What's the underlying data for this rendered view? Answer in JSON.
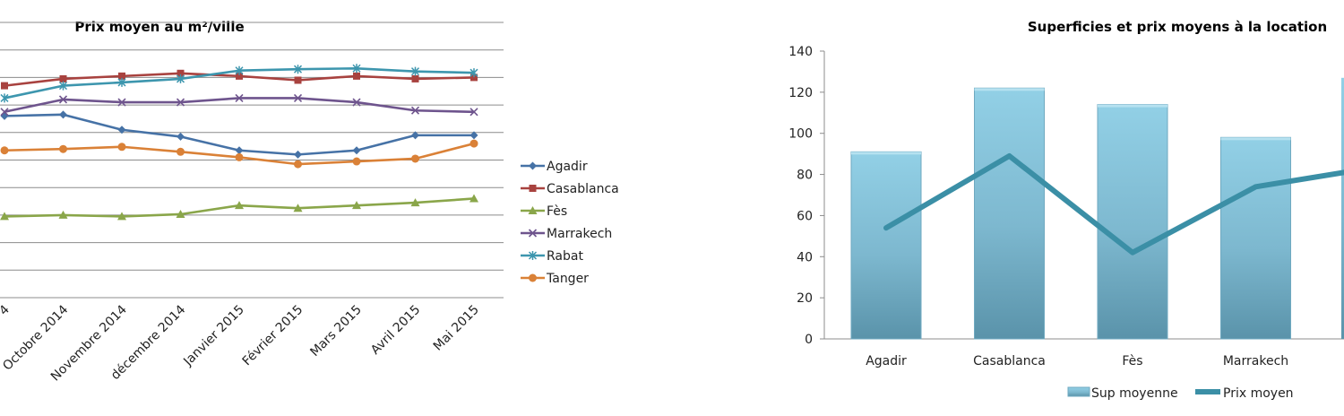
{
  "chart_data": [
    {
      "type": "line",
      "title": "Prix moyen au m²/ville",
      "x_labels": [
        "4",
        "Octobre 2014",
        "Novembre 2014",
        "décembre 2014",
        "Janvier 2015",
        "Février 2015",
        "Mars 2015",
        "Avril 2015",
        "Mai 2015"
      ],
      "grid": true,
      "legend_placement": "right",
      "series": [
        {
          "name": "Agadir",
          "color": "#4672A6",
          "marker": "diamond",
          "values": [
            6.6,
            6.65,
            6.1,
            5.85,
            5.35,
            5.2,
            5.35,
            5.9,
            5.9
          ]
        },
        {
          "name": "Casablanca",
          "color": "#A8423F",
          "marker": "square",
          "values": [
            7.7,
            7.95,
            8.05,
            8.15,
            8.05,
            7.9,
            8.05,
            7.95,
            8.0
          ]
        },
        {
          "name": "Fès",
          "color": "#8AA64A",
          "marker": "triangle",
          "values": [
            2.95,
            3.0,
            2.95,
            3.03,
            3.35,
            3.25,
            3.35,
            3.45,
            3.6
          ]
        },
        {
          "name": "Marrakech",
          "color": "#6E548D",
          "marker": "x",
          "values": [
            6.75,
            7.2,
            7.1,
            7.1,
            7.25,
            7.25,
            7.1,
            6.8,
            6.75
          ]
        },
        {
          "name": "Rabat",
          "color": "#3D96AE",
          "marker": "star",
          "values": [
            7.25,
            7.7,
            7.82,
            7.95,
            8.25,
            8.3,
            8.33,
            8.22,
            8.17
          ]
        },
        {
          "name": "Tanger",
          "color": "#DA8137",
          "marker": "circle",
          "values": [
            5.35,
            5.4,
            5.48,
            5.3,
            5.1,
            4.85,
            4.95,
            5.05,
            5.6
          ]
        }
      ]
    },
    {
      "type": "bar",
      "title": "Superficies et prix moyens à la location",
      "categories": [
        "Agadir",
        "Casablanca",
        "Fès",
        "Marrakech"
      ],
      "ylim": [
        0,
        140
      ],
      "y_ticks": [
        "0",
        "20",
        "40",
        "60",
        "80",
        "100",
        "120",
        "140"
      ],
      "legend_placement": "bottom",
      "bar_color": "#8FCADF",
      "line_color": "#3B8FA6",
      "series": [
        {
          "name": "Sup moyenne",
          "type": "bar",
          "values": [
            91,
            122,
            114,
            98
          ]
        },
        {
          "name": "Prix moyen",
          "type": "line",
          "values": [
            54,
            89,
            42,
            74
          ]
        }
      ]
    }
  ]
}
